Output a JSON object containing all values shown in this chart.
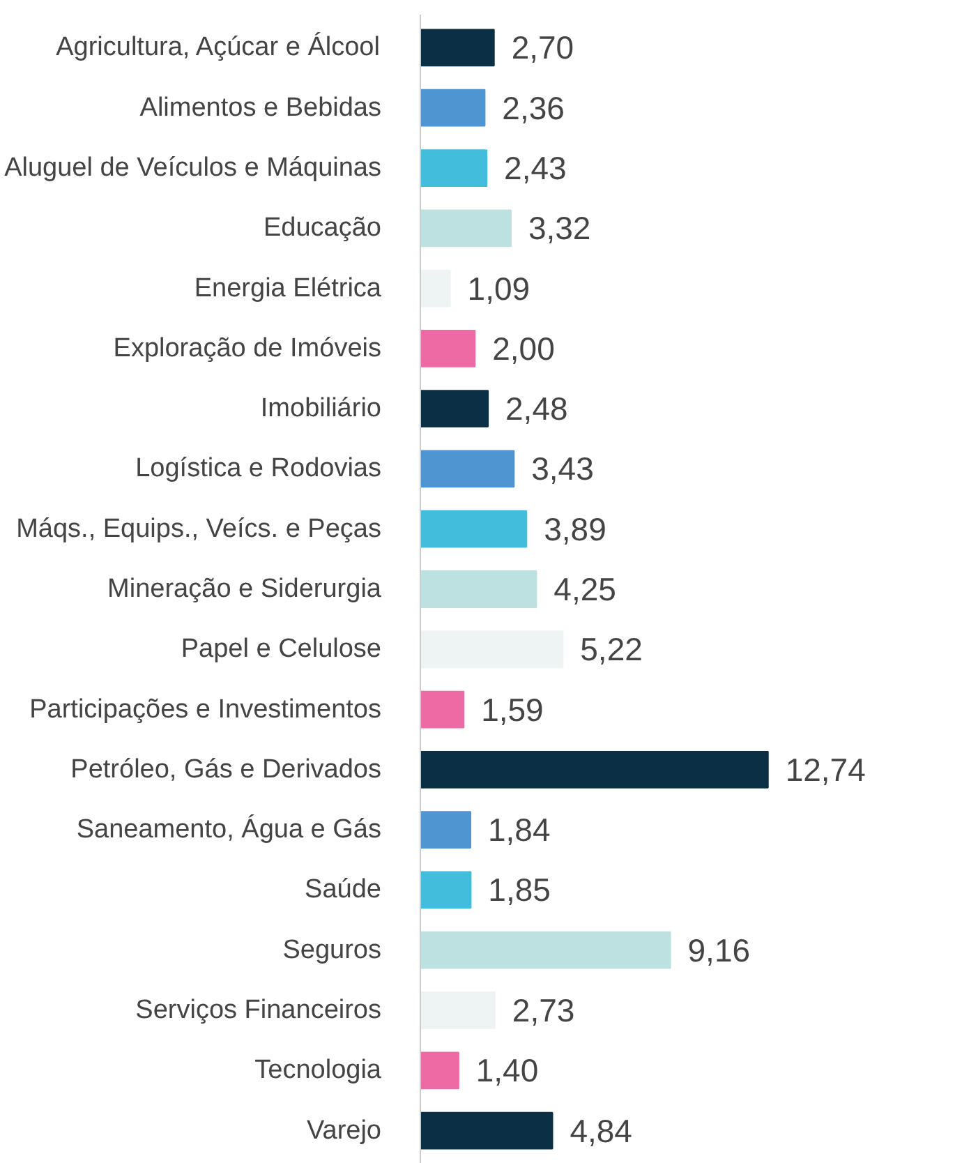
{
  "chart_data": {
    "type": "bar",
    "orientation": "horizontal",
    "categories": [
      "Agricultura, Açúcar e Álcool",
      "Alimentos e Bebidas",
      "Aluguel de Veículos e Máquinas",
      "Educação",
      "Energia Elétrica",
      "Exploração de Imóveis",
      "Imobiliário",
      "Logística e Rodovias",
      "Máqs., Equips., Veícs. e Peças",
      "Mineração e Siderurgia",
      "Papel e Celulose",
      "Participações e Investimentos",
      "Petróleo, Gás e Derivados",
      "Saneamento, Água e Gás",
      "Saúde",
      "Seguros",
      "Serviços Financeiros",
      "Tecnologia",
      "Varejo"
    ],
    "values": [
      2.7,
      2.36,
      2.43,
      3.32,
      1.09,
      2.0,
      2.48,
      3.43,
      3.89,
      4.25,
      5.22,
      1.59,
      12.74,
      1.84,
      1.85,
      9.16,
      2.73,
      1.4,
      4.84
    ],
    "value_labels": [
      "2,70",
      "2,36",
      "2,43",
      "3,32",
      "1,09",
      "2,00",
      "2,48",
      "3,43",
      "3,89",
      "4,25",
      "5,22",
      "1,59",
      "12,74",
      "1,84",
      "1,85",
      "9,16",
      "2,73",
      "1,40",
      "4,84"
    ],
    "colors": [
      "#0b2f45",
      "#4f95d2",
      "#42bedc",
      "#bce1e0",
      "#eef3f3",
      "#ee6aa5",
      "#0b2f45",
      "#4f95d2",
      "#42bedc",
      "#bce1e0",
      "#eef3f3",
      "#ee6aa5",
      "#0b2f45",
      "#4f95d2",
      "#42bedc",
      "#bce1e0",
      "#eef3f3",
      "#ee6aa5",
      "#0b2f45"
    ],
    "grid": false
  }
}
